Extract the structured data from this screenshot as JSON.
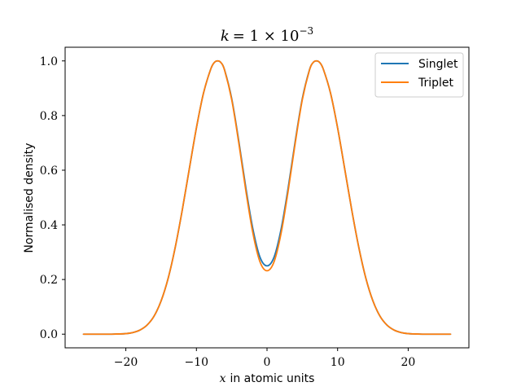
{
  "chart_data": {
    "type": "line",
    "title_var": "k",
    "title_eq": "= 1 × 10",
    "title_exp": "−3",
    "xlabel_var": "x",
    "xlabel_text": "in atomic units",
    "ylabel": "Normalised density",
    "xlim": [
      -28.6,
      28.6
    ],
    "ylim": [
      -0.05,
      1.05
    ],
    "xticks": [
      -20,
      -10,
      0,
      10,
      20
    ],
    "xtick_labels": [
      "−20",
      "−10",
      "0",
      "10",
      "20"
    ],
    "yticks": [
      0.0,
      0.2,
      0.4,
      0.6,
      0.8,
      1.0
    ],
    "ytick_labels": [
      "0.0",
      "0.2",
      "0.4",
      "0.6",
      "0.8",
      "1.0"
    ],
    "grid": false,
    "legend_position": "top-right",
    "series": [
      {
        "name": "Singlet",
        "color": "#1f77b4",
        "x": [
          -26,
          -24,
          -22,
          -20,
          -19,
          -18,
          -17,
          -16,
          -15,
          -14,
          -13,
          -12,
          -11,
          -10,
          -9,
          -8,
          -7.5,
          -7,
          -6.5,
          -6,
          -5,
          -4,
          -3,
          -2,
          -1,
          0,
          1,
          2,
          3,
          4,
          5,
          6,
          6.5,
          7,
          7.5,
          8,
          9,
          10,
          11,
          12,
          13,
          14,
          15,
          16,
          17,
          18,
          19,
          20,
          22,
          24,
          26
        ],
        "y": [
          0.0,
          0.0,
          0.0,
          0.002,
          0.006,
          0.015,
          0.033,
          0.066,
          0.122,
          0.205,
          0.318,
          0.455,
          0.606,
          0.755,
          0.882,
          0.968,
          0.993,
          1.0,
          0.993,
          0.966,
          0.862,
          0.707,
          0.536,
          0.385,
          0.282,
          0.25,
          0.282,
          0.385,
          0.536,
          0.707,
          0.862,
          0.966,
          0.993,
          1.0,
          0.993,
          0.968,
          0.882,
          0.755,
          0.606,
          0.455,
          0.318,
          0.205,
          0.122,
          0.066,
          0.033,
          0.015,
          0.006,
          0.002,
          0.0,
          0.0,
          0.0
        ]
      },
      {
        "name": "Triplet",
        "color": "#ff7f0e",
        "x": [
          -26,
          -24,
          -22,
          -20,
          -19,
          -18,
          -17,
          -16,
          -15,
          -14,
          -13,
          -12,
          -11,
          -10,
          -9,
          -8,
          -7.5,
          -7,
          -6.5,
          -6,
          -5,
          -4,
          -3,
          -2,
          -1,
          0,
          1,
          2,
          3,
          4,
          5,
          6,
          6.5,
          7,
          7.5,
          8,
          9,
          10,
          11,
          12,
          13,
          14,
          15,
          16,
          17,
          18,
          19,
          20,
          22,
          24,
          26
        ],
        "y": [
          0.0,
          0.0,
          0.0,
          0.002,
          0.006,
          0.015,
          0.033,
          0.066,
          0.122,
          0.205,
          0.318,
          0.455,
          0.606,
          0.755,
          0.882,
          0.968,
          0.993,
          1.0,
          0.993,
          0.965,
          0.858,
          0.7,
          0.525,
          0.37,
          0.265,
          0.232,
          0.265,
          0.37,
          0.525,
          0.7,
          0.858,
          0.965,
          0.993,
          1.0,
          0.993,
          0.968,
          0.882,
          0.755,
          0.606,
          0.455,
          0.318,
          0.205,
          0.122,
          0.066,
          0.033,
          0.015,
          0.006,
          0.002,
          0.0,
          0.0,
          0.0
        ]
      }
    ]
  }
}
